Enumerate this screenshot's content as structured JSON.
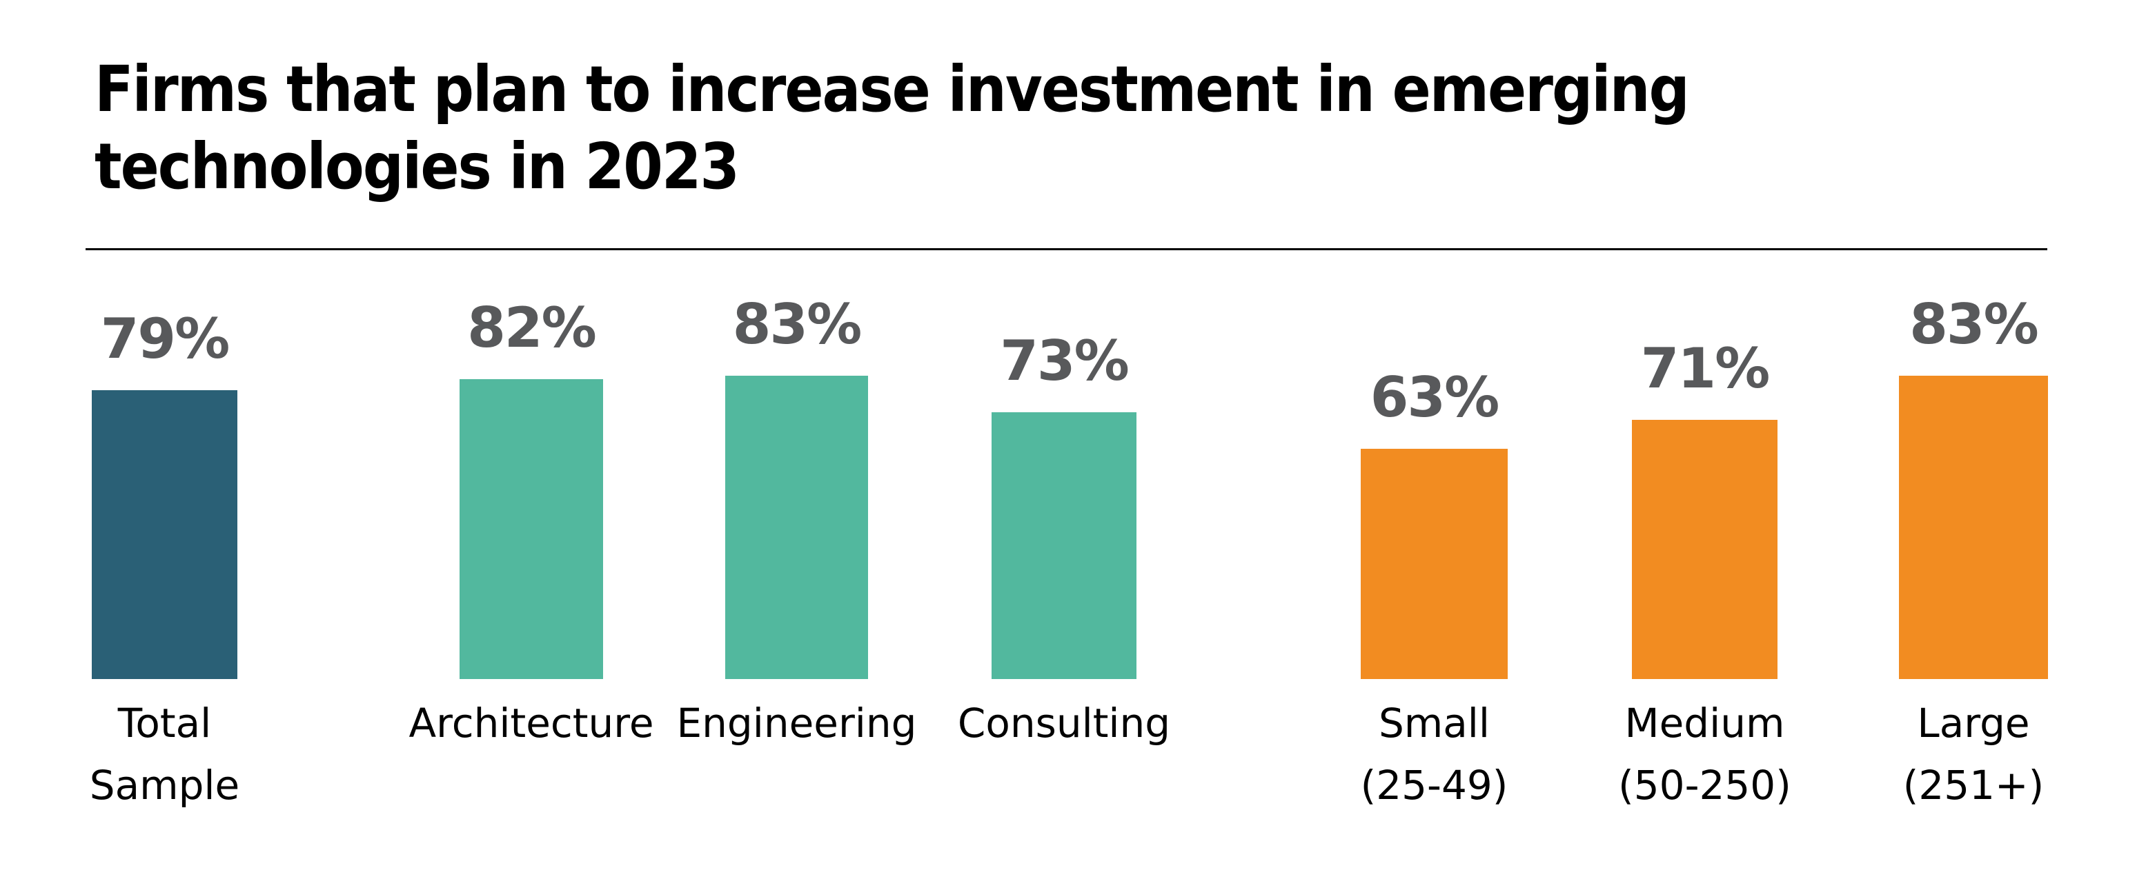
{
  "header": {
    "title": "Firms that plan to increase investment in emerging technologies in 2023",
    "title_lines": [
      "Firms that plan to increase investment in emerging",
      "technologies in 2023"
    ]
  },
  "colors": {
    "background": "#FFFFFF",
    "title_text": "#000000",
    "divider": "#000000",
    "value_label_text": "#58595B",
    "category_label_text": "#000000",
    "total_sample_bar": "#2A6076",
    "discipline_bars": "#52B89E",
    "firm_size_bars": "#F28C21"
  },
  "chart_data": {
    "type": "bar",
    "title": "Firms that plan to increase investment in emerging technologies in 2023",
    "xlabel": "",
    "ylabel": "",
    "ylim": [
      0,
      100
    ],
    "grid": false,
    "legend": false,
    "value_suffix": "%",
    "categories": [
      "Total Sample",
      "Architecture",
      "Engineering",
      "Consulting",
      "Small (25-49)",
      "Medium (50-250)",
      "Large (251+)"
    ],
    "values": [
      79,
      82,
      83,
      73,
      63,
      71,
      83
    ],
    "bars": [
      {
        "category": "Total Sample",
        "label_lines": [
          "Total",
          "Sample"
        ],
        "value": 79,
        "display": "79%",
        "group": 0,
        "color": "#2A6076"
      },
      {
        "category": "Architecture",
        "label_lines": [
          "Architecture"
        ],
        "value": 82,
        "display": "82%",
        "group": 1,
        "color": "#52B89E"
      },
      {
        "category": "Engineering",
        "label_lines": [
          "Engineering"
        ],
        "value": 83,
        "display": "83%",
        "group": 1,
        "color": "#52B89E"
      },
      {
        "category": "Consulting",
        "label_lines": [
          "Consulting"
        ],
        "value": 73,
        "display": "73%",
        "group": 1,
        "color": "#52B89E"
      },
      {
        "category": "Small (25-49)",
        "label_lines": [
          "Small",
          "(25-49)"
        ],
        "value": 63,
        "display": "63%",
        "group": 2,
        "color": "#F28C21"
      },
      {
        "category": "Medium (50-250)",
        "label_lines": [
          "Medium",
          "(50-250)"
        ],
        "value": 71,
        "display": "71%",
        "group": 2,
        "color": "#F28C21"
      },
      {
        "category": "Large (251+)",
        "label_lines": [
          "Large",
          "(251+)"
        ],
        "value": 83,
        "display": "83%",
        "group": 2,
        "color": "#F28C21"
      }
    ]
  }
}
